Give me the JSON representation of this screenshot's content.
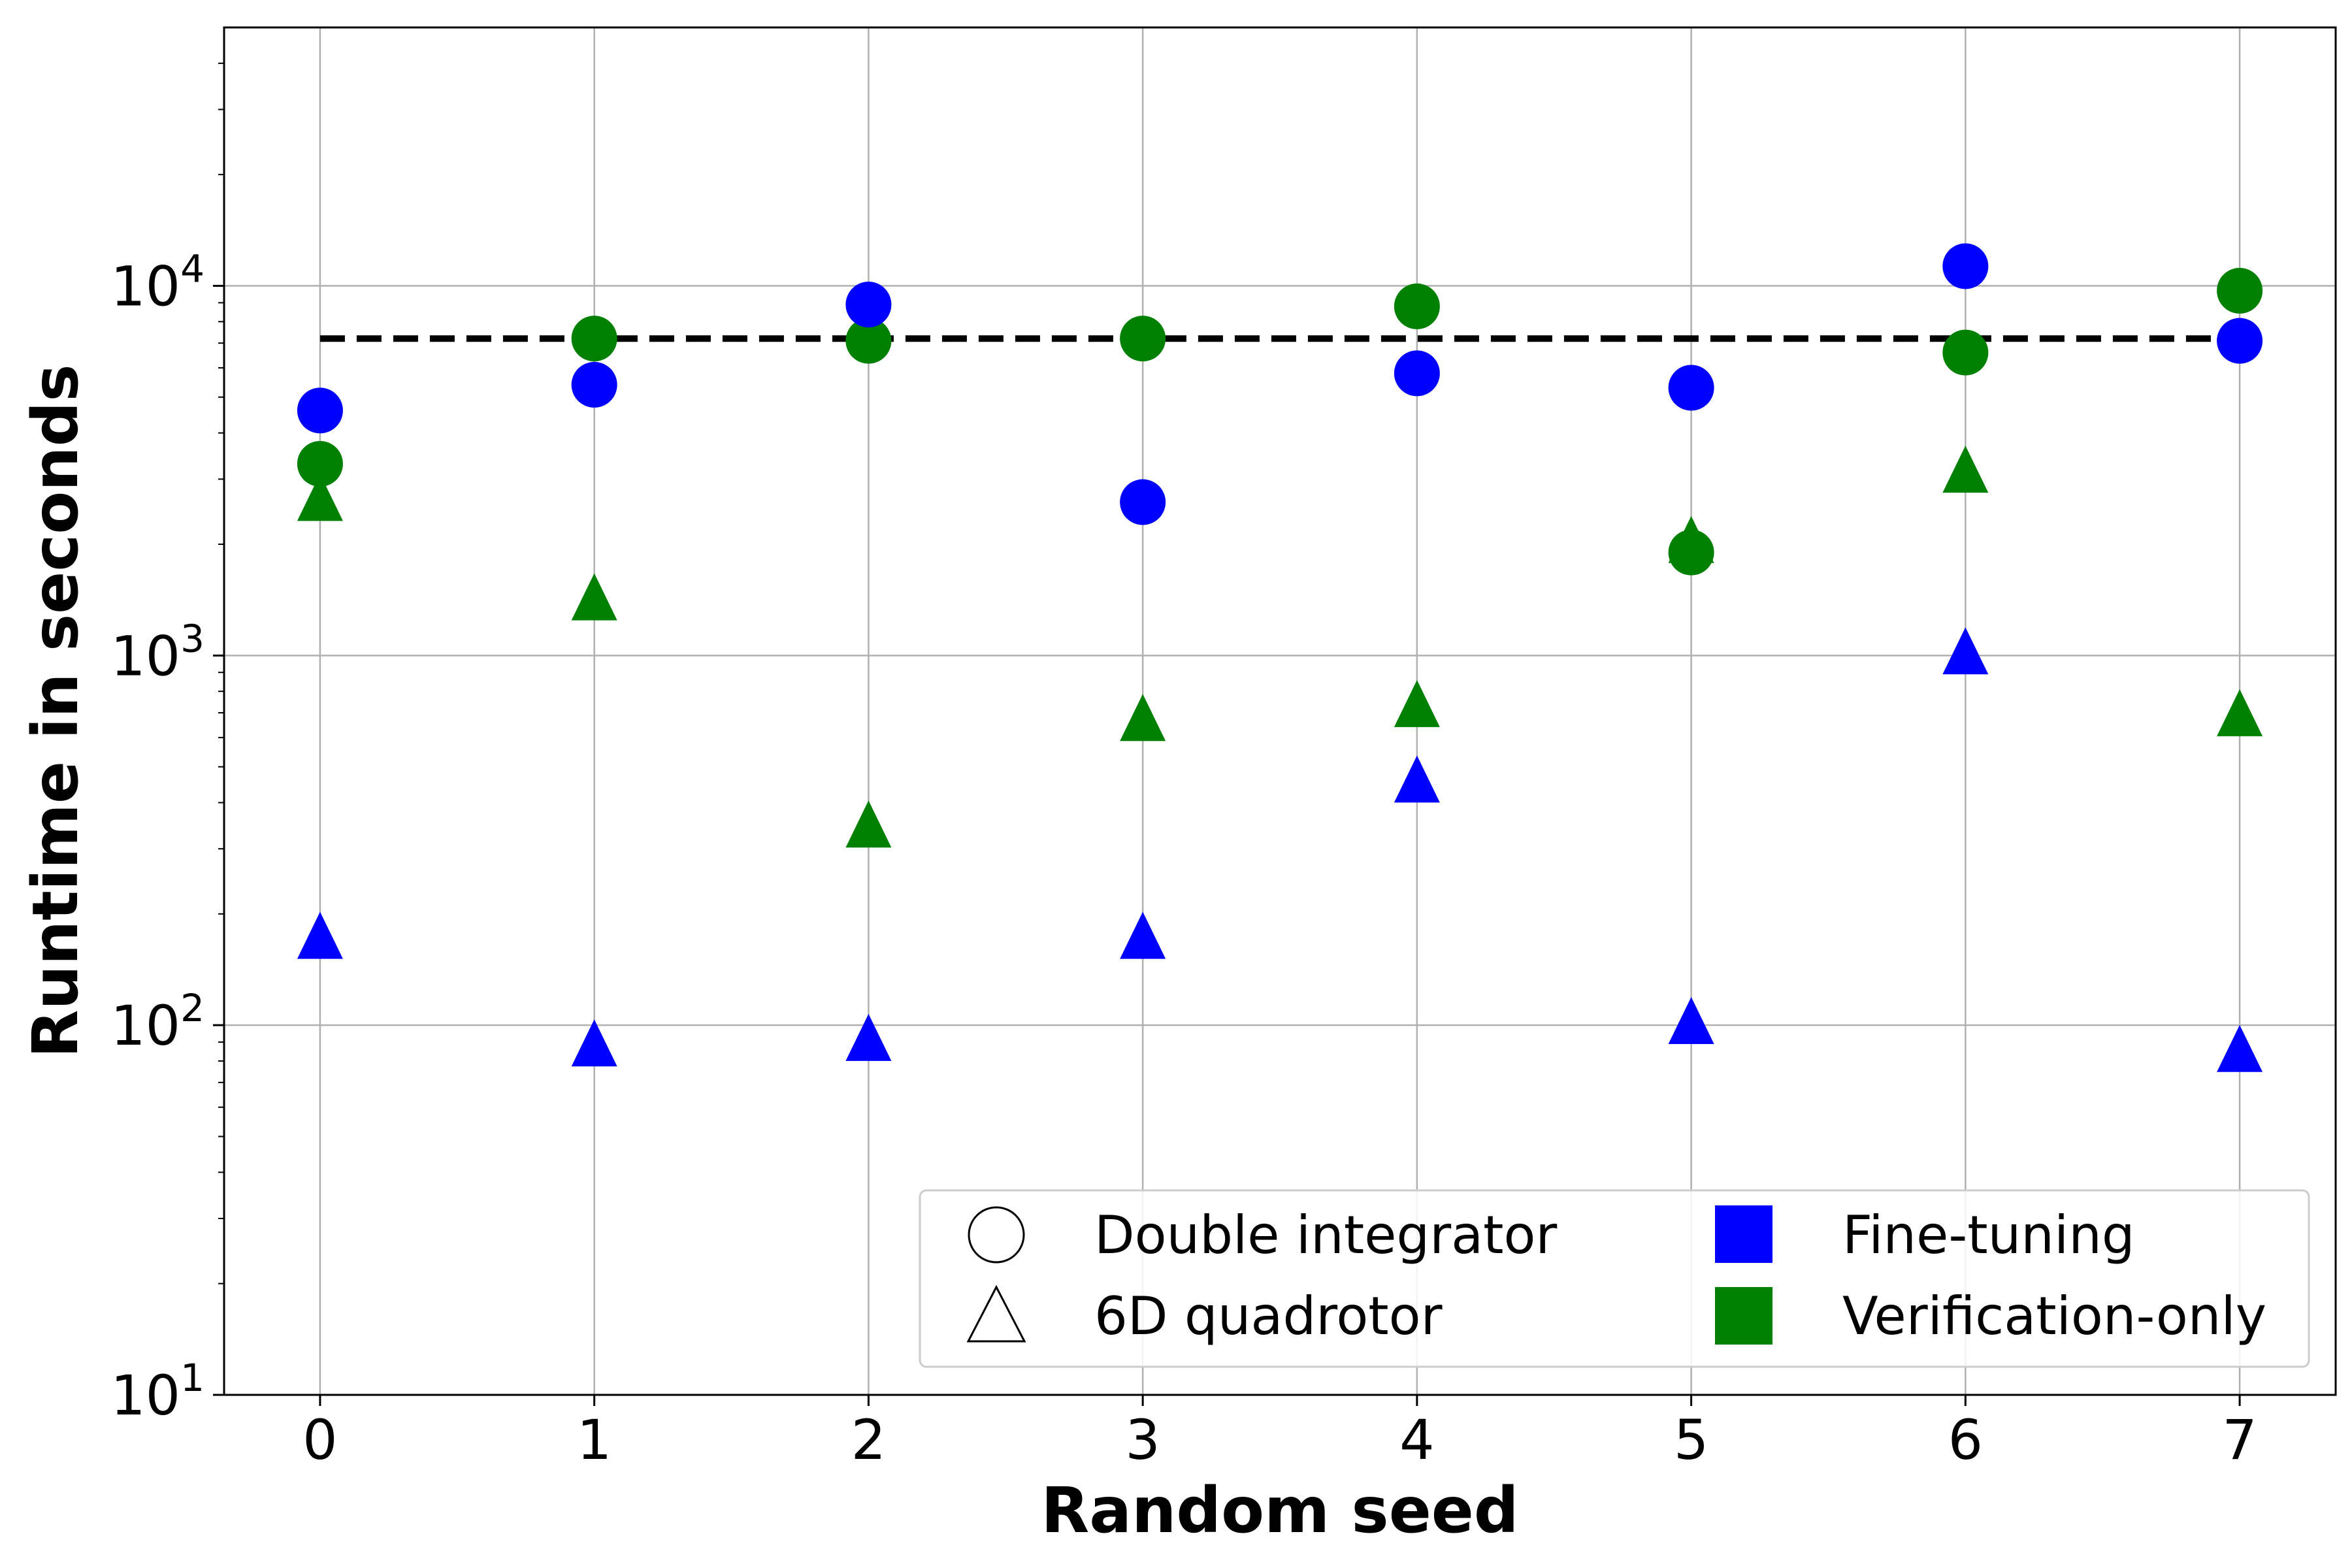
{
  "chart_data": {
    "type": "scatter",
    "xlabel": "Random seed",
    "ylabel": "Runtime in seconds",
    "x_ticks": [
      "0",
      "1",
      "2",
      "3",
      "4",
      "5",
      "6",
      "7"
    ],
    "xlim": [
      -0.35,
      7.35
    ],
    "ylim": [
      10,
      50000
    ],
    "y_scale": "log",
    "y_ticks": [
      {
        "value": 10,
        "base": "10",
        "exp": "1"
      },
      {
        "value": 100,
        "base": "10",
        "exp": "2"
      },
      {
        "value": 1000,
        "base": "10",
        "exp": "3"
      },
      {
        "value": 10000,
        "base": "10",
        "exp": "4"
      }
    ],
    "grid": true,
    "threshold": {
      "value": 7200,
      "x_range": [
        0,
        7
      ],
      "style": "dashed",
      "color": "#000000"
    },
    "colors": {
      "fine_tuning": "#0000ff",
      "verification_only": "#008000"
    },
    "series": [
      {
        "name": "Double integrator / Verification-only",
        "marker": "circle",
        "color_key": "verification_only",
        "points": [
          [
            0,
            3300
          ],
          [
            1,
            7200
          ],
          [
            2,
            7100
          ],
          [
            3,
            7200
          ],
          [
            4,
            8800
          ],
          [
            5,
            1900
          ],
          [
            6,
            6600
          ],
          [
            7,
            9700
          ]
        ]
      },
      {
        "name": "Double integrator / Fine-tuning",
        "marker": "circle",
        "color_key": "fine_tuning",
        "points": [
          [
            0,
            4600
          ],
          [
            1,
            5400
          ],
          [
            2,
            8900
          ],
          [
            3,
            2600
          ],
          [
            4,
            5800
          ],
          [
            5,
            5300
          ],
          [
            6,
            11300
          ],
          [
            7,
            7100
          ]
        ]
      },
      {
        "name": "6D quadrotor / Verification-only",
        "marker": "triangle",
        "color_key": "verification_only",
        "points": [
          [
            0,
            2600
          ],
          [
            1,
            1400
          ],
          [
            2,
            340
          ],
          [
            3,
            660
          ],
          [
            4,
            720
          ],
          [
            5,
            2000
          ],
          [
            6,
            3100
          ],
          [
            7,
            680
          ]
        ]
      },
      {
        "name": "6D quadrotor / Fine-tuning",
        "marker": "triangle",
        "color_key": "fine_tuning",
        "points": [
          [
            0,
            170
          ],
          [
            1,
            87
          ],
          [
            2,
            90
          ],
          [
            3,
            170
          ],
          [
            4,
            450
          ],
          [
            5,
            100
          ],
          [
            6,
            1000
          ],
          [
            7,
            84
          ]
        ]
      }
    ],
    "legend": {
      "placement": "lower-right",
      "entries": [
        {
          "label": "Double integrator",
          "symbol": "circle-outline"
        },
        {
          "label": "6D quadrotor",
          "symbol": "triangle-outline"
        },
        {
          "label": "Fine-tuning",
          "symbol": "square",
          "color": "#0000ff"
        },
        {
          "label": "Verification-only",
          "symbol": "square",
          "color": "#008000"
        }
      ]
    }
  }
}
